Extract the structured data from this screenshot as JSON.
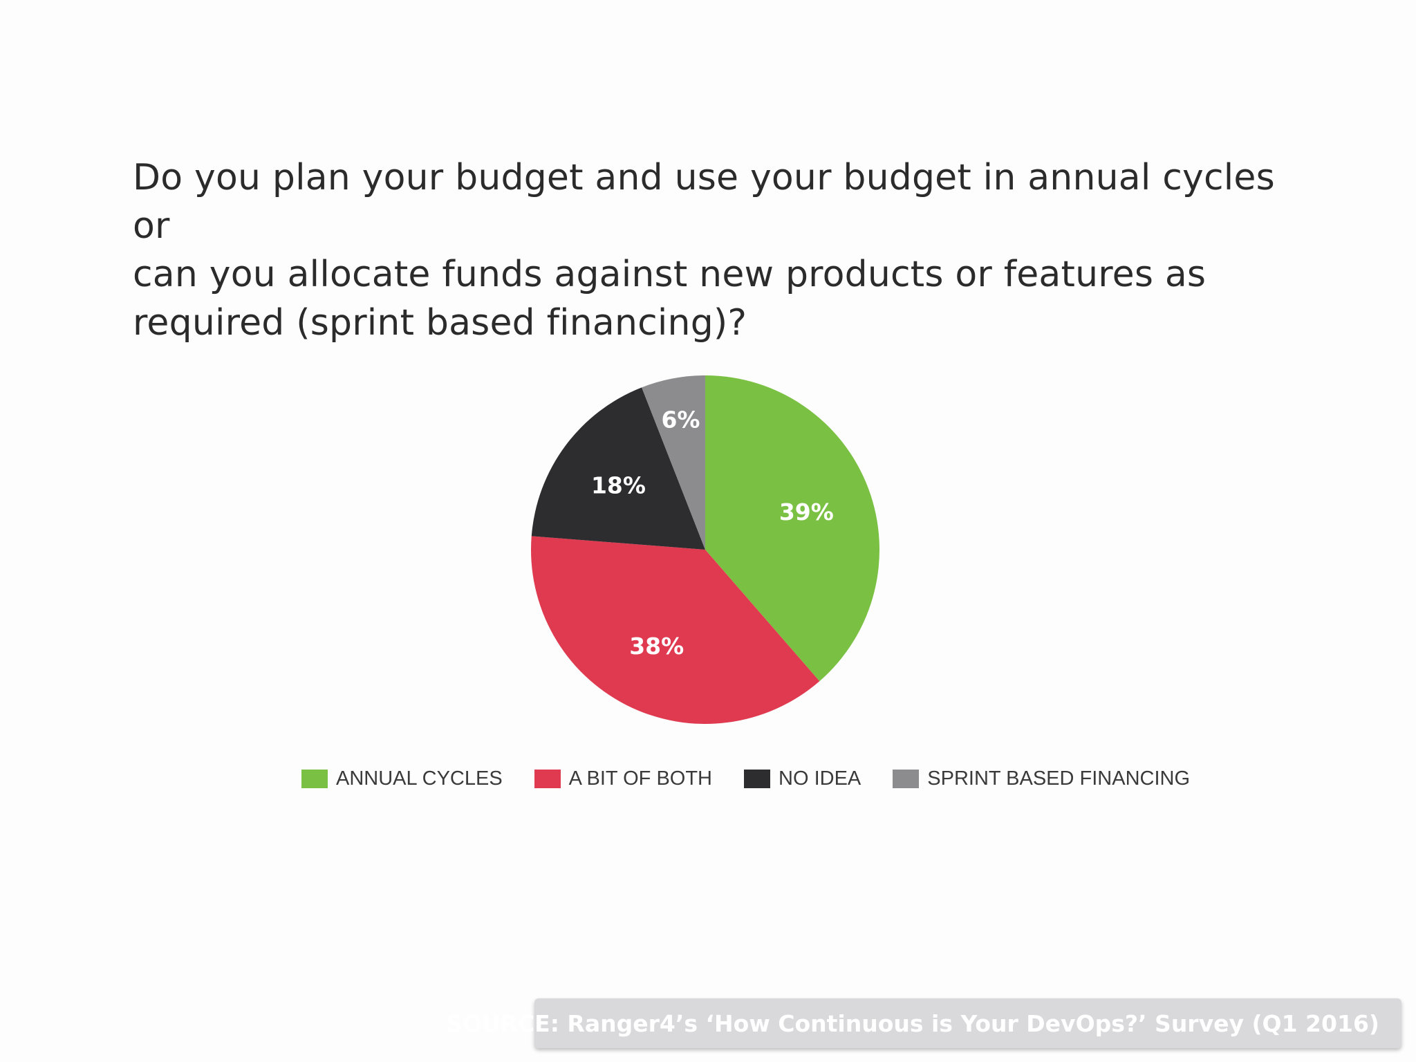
{
  "title_lines": [
    "Do you plan your budget and use your budget in annual cycles or",
    "can you allocate funds against new products or features as",
    "required (sprint based financing)?"
  ],
  "chart_data": {
    "type": "pie",
    "title": "Do you plan your budget and use your budget in annual cycles or can you allocate funds against new products or features as required (sprint based financing)?",
    "categories": [
      "ANNUAL CYCLES",
      "A BIT OF BOTH",
      "NO IDEA",
      "SPRINT BASED FINANCING"
    ],
    "values": [
      39,
      38,
      18,
      6
    ],
    "labels": [
      "39%",
      "38%",
      "18%",
      "6%"
    ],
    "colors": [
      "#7ac143",
      "#e03a50",
      "#2d2d30",
      "#8c8c8e"
    ],
    "legend_position": "bottom"
  },
  "source": "SOURCE: Ranger4’s ‘How Continuous is Your DevOps?’ Survey (Q1 2016)"
}
